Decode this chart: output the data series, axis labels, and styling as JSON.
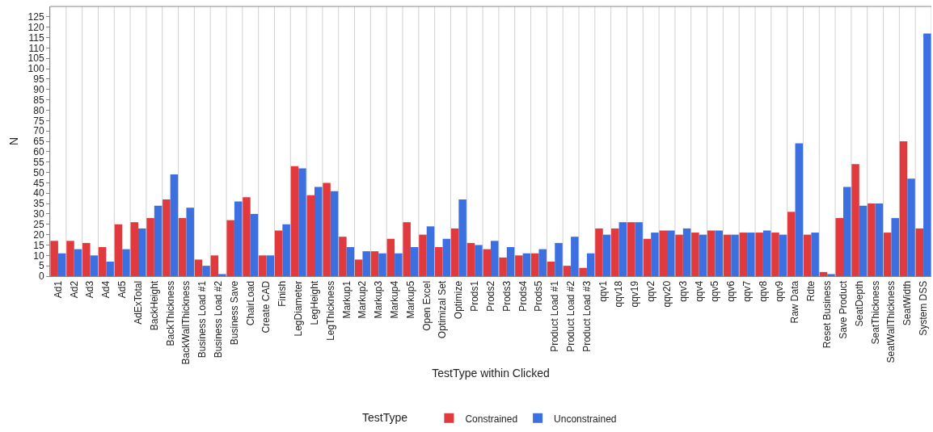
{
  "chart_data": {
    "type": "bar",
    "xlabel": "TestType within Clicked",
    "ylabel": "N",
    "legend_title": "TestType",
    "legend": "bottom",
    "grid": "x",
    "categories": [
      "Ad1",
      "Ad2",
      "Ad3",
      "Ad4",
      "Ad5",
      "AdExTotal",
      "BackHeight",
      "BackThickness",
      "BackWallThickness",
      "Business Load #1",
      "Business Load #2",
      "Business Save",
      "ChairLoad",
      "Create CAD",
      "Finish",
      "LegDiameter",
      "LegHeight",
      "LegThickness",
      "Markup1",
      "Markup2",
      "Markup3",
      "Markup4",
      "Markup5",
      "Open Excel",
      "Optimizal Set",
      "Optimize",
      "Prods1",
      "Prods2",
      "Prods3",
      "Prods4",
      "Prods5",
      "Product Load #1",
      "Product Load #2",
      "Product Load #3",
      "qqv1",
      "qqv18",
      "qqv19",
      "qqv2",
      "qqv20",
      "qqv3",
      "qqv4",
      "qqv5",
      "qqv6",
      "qqv7",
      "qqv8",
      "qqv9",
      "Raw Data",
      "Rdte",
      "Reset Business",
      "Save Product",
      "SeatDepth",
      "SeatThickness",
      "SeatWallThickness",
      "SeatWidth",
      "System DSS"
    ],
    "series": [
      {
        "name": "Constrained",
        "color": "#e0393e",
        "values": [
          17,
          17,
          16,
          14,
          25,
          26,
          28,
          37,
          28,
          8,
          10,
          27,
          38,
          10,
          22,
          53,
          39,
          45,
          19,
          8,
          12,
          18,
          26,
          20,
          14,
          23,
          16,
          13,
          9,
          10,
          11,
          7,
          5,
          4,
          23,
          23,
          26,
          18,
          22,
          20,
          21,
          22,
          20,
          21,
          21,
          21,
          31,
          20,
          2,
          28,
          54,
          35,
          21,
          65,
          23
        ]
      },
      {
        "name": "Unconstrained",
        "color": "#3c6fe0",
        "values": [
          11,
          13,
          10,
          7,
          13,
          23,
          34,
          49,
          33,
          5,
          1,
          36,
          30,
          10,
          25,
          52,
          43,
          41,
          14,
          12,
          11,
          11,
          14,
          24,
          18,
          37,
          15,
          17,
          14,
          11,
          13,
          16,
          19,
          11,
          20,
          26,
          26,
          21,
          22,
          23,
          20,
          22,
          20,
          21,
          22,
          20,
          64,
          21,
          1,
          43,
          34,
          35,
          28,
          47,
          117
        ]
      }
    ],
    "ylim": [
      0,
      130
    ],
    "yticks": [
      0,
      5,
      10,
      15,
      20,
      25,
      30,
      35,
      40,
      45,
      50,
      55,
      60,
      65,
      70,
      75,
      80,
      85,
      90,
      95,
      100,
      105,
      110,
      115,
      120,
      125
    ]
  }
}
